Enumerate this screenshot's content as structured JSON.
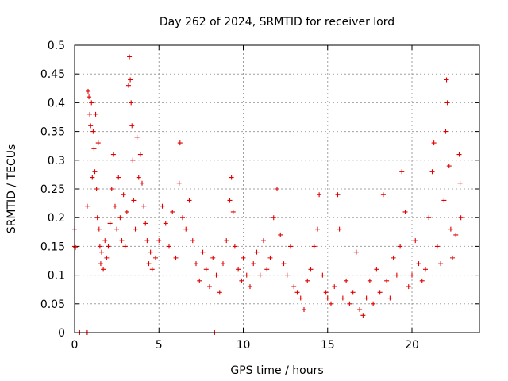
{
  "chart_data": {
    "type": "scatter",
    "title": "Day 262 of 2024, SRMTID for receiver lord",
    "xlabel": "GPS time / hours",
    "ylabel": "SRMTID / TECUs",
    "xlim": [
      0,
      24
    ],
    "ylim": [
      0,
      0.5
    ],
    "xticks": [
      "0",
      "5",
      "10",
      "15",
      "20"
    ],
    "yticks": [
      "0",
      "0.05",
      "0.1",
      "0.15",
      "0.2",
      "0.25",
      "0.3",
      "0.35",
      "0.4",
      "0.45",
      "0.5"
    ],
    "grid": true,
    "marker": "plus",
    "color": "#e00000",
    "series": [
      {
        "values": [
          [
            0.0,
            0.18
          ],
          [
            0.0,
            0.15
          ],
          [
            0.05,
            0.148
          ],
          [
            0.3,
            0.0
          ],
          [
            0.7,
            0.0
          ],
          [
            0.75,
            0.0
          ],
          [
            8.3,
            0.0
          ],
          [
            0.75,
            0.22
          ],
          [
            0.8,
            0.42
          ],
          [
            0.85,
            0.41
          ],
          [
            0.9,
            0.38
          ],
          [
            0.95,
            0.36
          ],
          [
            1.0,
            0.4
          ],
          [
            1.05,
            0.27
          ],
          [
            1.1,
            0.35
          ],
          [
            1.15,
            0.32
          ],
          [
            1.2,
            0.28
          ],
          [
            1.25,
            0.38
          ],
          [
            1.3,
            0.25
          ],
          [
            1.35,
            0.2
          ],
          [
            1.4,
            0.33
          ],
          [
            1.45,
            0.18
          ],
          [
            1.5,
            0.15
          ],
          [
            1.55,
            0.12
          ],
          [
            1.6,
            0.14
          ],
          [
            1.7,
            0.11
          ],
          [
            1.8,
            0.16
          ],
          [
            1.9,
            0.13
          ],
          [
            2.0,
            0.15
          ],
          [
            2.1,
            0.19
          ],
          [
            2.2,
            0.25
          ],
          [
            2.3,
            0.31
          ],
          [
            2.4,
            0.22
          ],
          [
            2.5,
            0.18
          ],
          [
            2.6,
            0.27
          ],
          [
            2.7,
            0.2
          ],
          [
            2.8,
            0.16
          ],
          [
            2.9,
            0.24
          ],
          [
            3.0,
            0.15
          ],
          [
            3.1,
            0.21
          ],
          [
            3.2,
            0.43
          ],
          [
            3.25,
            0.48
          ],
          [
            3.3,
            0.44
          ],
          [
            3.35,
            0.4
          ],
          [
            3.4,
            0.36
          ],
          [
            3.45,
            0.3
          ],
          [
            3.5,
            0.23
          ],
          [
            3.6,
            0.18
          ],
          [
            3.7,
            0.34
          ],
          [
            3.8,
            0.27
          ],
          [
            3.9,
            0.31
          ],
          [
            4.0,
            0.26
          ],
          [
            4.1,
            0.22
          ],
          [
            4.2,
            0.19
          ],
          [
            4.3,
            0.16
          ],
          [
            4.4,
            0.12
          ],
          [
            4.5,
            0.14
          ],
          [
            4.6,
            0.11
          ],
          [
            4.8,
            0.13
          ],
          [
            5.0,
            0.16
          ],
          [
            5.2,
            0.22
          ],
          [
            5.4,
            0.19
          ],
          [
            5.6,
            0.15
          ],
          [
            5.8,
            0.21
          ],
          [
            6.0,
            0.13
          ],
          [
            6.2,
            0.26
          ],
          [
            6.25,
            0.33
          ],
          [
            6.4,
            0.2
          ],
          [
            6.6,
            0.18
          ],
          [
            6.8,
            0.23
          ],
          [
            7.0,
            0.16
          ],
          [
            7.2,
            0.12
          ],
          [
            7.4,
            0.09
          ],
          [
            7.6,
            0.14
          ],
          [
            7.8,
            0.11
          ],
          [
            8.0,
            0.08
          ],
          [
            8.2,
            0.13
          ],
          [
            8.4,
            0.1
          ],
          [
            8.6,
            0.07
          ],
          [
            8.8,
            0.12
          ],
          [
            9.0,
            0.16
          ],
          [
            9.2,
            0.23
          ],
          [
            9.3,
            0.27
          ],
          [
            9.4,
            0.21
          ],
          [
            9.5,
            0.15
          ],
          [
            9.7,
            0.11
          ],
          [
            9.9,
            0.09
          ],
          [
            10.0,
            0.13
          ],
          [
            10.2,
            0.1
          ],
          [
            10.4,
            0.08
          ],
          [
            10.6,
            0.12
          ],
          [
            10.8,
            0.14
          ],
          [
            11.0,
            0.1
          ],
          [
            11.2,
            0.16
          ],
          [
            11.4,
            0.11
          ],
          [
            11.6,
            0.13
          ],
          [
            11.8,
            0.2
          ],
          [
            12.0,
            0.25
          ],
          [
            12.2,
            0.17
          ],
          [
            12.4,
            0.12
          ],
          [
            12.6,
            0.1
          ],
          [
            12.8,
            0.15
          ],
          [
            13.0,
            0.08
          ],
          [
            13.2,
            0.07
          ],
          [
            13.4,
            0.06
          ],
          [
            13.6,
            0.04
          ],
          [
            13.8,
            0.09
          ],
          [
            14.0,
            0.11
          ],
          [
            14.2,
            0.15
          ],
          [
            14.4,
            0.18
          ],
          [
            14.5,
            0.24
          ],
          [
            14.7,
            0.1
          ],
          [
            14.9,
            0.07
          ],
          [
            15.0,
            0.06
          ],
          [
            15.2,
            0.05
          ],
          [
            15.4,
            0.08
          ],
          [
            15.6,
            0.24
          ],
          [
            15.7,
            0.18
          ],
          [
            15.9,
            0.06
          ],
          [
            16.1,
            0.09
          ],
          [
            16.3,
            0.05
          ],
          [
            16.5,
            0.07
          ],
          [
            16.7,
            0.14
          ],
          [
            16.9,
            0.04
          ],
          [
            17.1,
            0.03
          ],
          [
            17.3,
            0.06
          ],
          [
            17.5,
            0.09
          ],
          [
            17.7,
            0.05
          ],
          [
            17.9,
            0.11
          ],
          [
            18.1,
            0.07
          ],
          [
            18.3,
            0.24
          ],
          [
            18.5,
            0.09
          ],
          [
            18.7,
            0.06
          ],
          [
            18.9,
            0.13
          ],
          [
            19.1,
            0.1
          ],
          [
            19.3,
            0.15
          ],
          [
            19.4,
            0.28
          ],
          [
            19.6,
            0.21
          ],
          [
            19.8,
            0.08
          ],
          [
            20.0,
            0.1
          ],
          [
            20.2,
            0.16
          ],
          [
            20.4,
            0.12
          ],
          [
            20.6,
            0.09
          ],
          [
            20.8,
            0.11
          ],
          [
            21.0,
            0.2
          ],
          [
            21.2,
            0.28
          ],
          [
            21.3,
            0.33
          ],
          [
            21.5,
            0.15
          ],
          [
            21.7,
            0.12
          ],
          [
            21.9,
            0.23
          ],
          [
            22.0,
            0.35
          ],
          [
            22.05,
            0.44
          ],
          [
            22.1,
            0.4
          ],
          [
            22.2,
            0.29
          ],
          [
            22.3,
            0.18
          ],
          [
            22.4,
            0.13
          ],
          [
            22.6,
            0.17
          ],
          [
            22.8,
            0.31
          ],
          [
            22.85,
            0.26
          ],
          [
            22.9,
            0.2
          ]
        ]
      }
    ]
  }
}
